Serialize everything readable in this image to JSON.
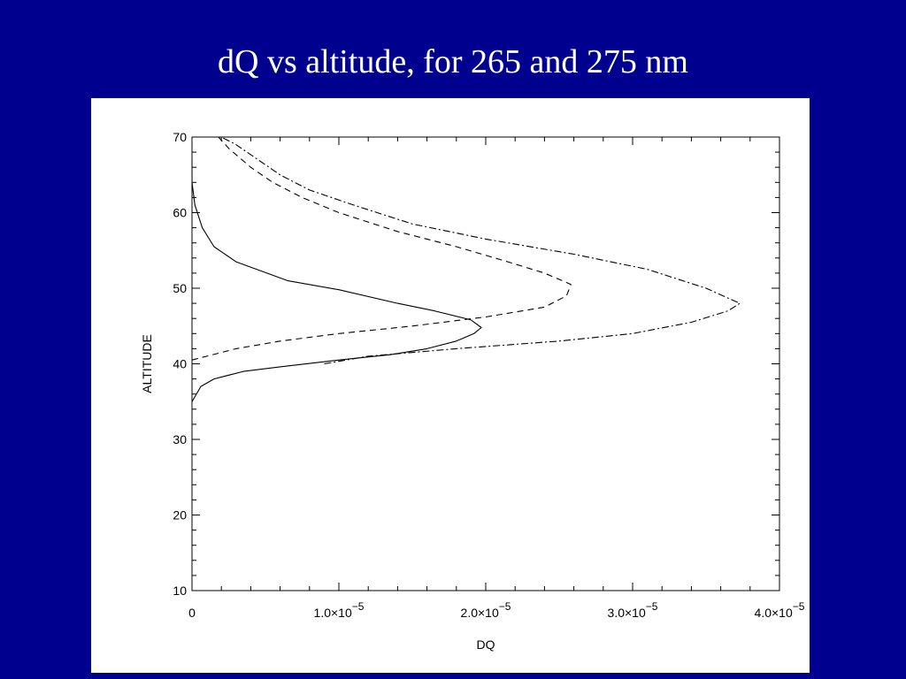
{
  "slide": {
    "title": "dQ vs altitude, for 265 and 275 nm"
  },
  "chart_data": {
    "type": "line",
    "title": "",
    "xlabel": "DQ",
    "ylabel": "ALTITUDE",
    "xlim": [
      0,
      4e-05
    ],
    "ylim": [
      10,
      70
    ],
    "grid": false,
    "x_tick_labels": [
      {
        "value": 0,
        "mantissa": "0",
        "exponent": ""
      },
      {
        "value": 1e-05,
        "mantissa": "1.0×10",
        "exponent": "−5"
      },
      {
        "value": 2e-05,
        "mantissa": "2.0×10",
        "exponent": "−5"
      },
      {
        "value": 3e-05,
        "mantissa": "3.0×10",
        "exponent": "−5"
      },
      {
        "value": 4e-05,
        "mantissa": "4.0×10",
        "exponent": "−5"
      }
    ],
    "y_ticks": [
      10,
      20,
      30,
      40,
      50,
      60,
      70
    ],
    "series": [
      {
        "line_style": "solid",
        "points": [
          [
            0.0,
            35.0
          ],
          [
            6e-07,
            37.0
          ],
          [
            1.5e-06,
            38.0
          ],
          [
            3.5e-06,
            39.0
          ],
          [
            6e-06,
            39.6
          ],
          [
            1e-05,
            40.5
          ],
          [
            1.35e-05,
            41.2
          ],
          [
            1.6e-05,
            42.0
          ],
          [
            1.8e-05,
            43.0
          ],
          [
            1.92e-05,
            44.0
          ],
          [
            1.97e-05,
            44.8
          ],
          [
            1.9e-05,
            45.8
          ],
          [
            1.65e-05,
            47.0
          ],
          [
            1.4e-05,
            48.0
          ],
          [
            1e-05,
            49.8
          ],
          [
            6.5e-06,
            51.0
          ],
          [
            3e-06,
            53.5
          ],
          [
            1.5e-06,
            55.5
          ],
          [
            7e-07,
            58.0
          ],
          [
            2e-07,
            61.0
          ],
          [
            0.0,
            64.0
          ],
          [
            0.0,
            67.0
          ]
        ]
      },
      {
        "line_style": "dashed",
        "points": [
          [
            0.0,
            40.5
          ],
          [
            3e-06,
            42.0
          ],
          [
            6e-06,
            43.0
          ],
          [
            1e-05,
            44.0
          ],
          [
            1.5e-05,
            45.0
          ],
          [
            2e-05,
            46.2
          ],
          [
            2.4e-05,
            47.5
          ],
          [
            2.55e-05,
            49.0
          ],
          [
            2.58e-05,
            50.5
          ],
          [
            2.4e-05,
            52.0
          ],
          [
            2.15e-05,
            53.5
          ],
          [
            1.8e-05,
            55.5
          ],
          [
            1.4e-05,
            57.5
          ],
          [
            1e-05,
            60.0
          ],
          [
            7.5e-06,
            62.0
          ],
          [
            5.5e-06,
            64.0
          ],
          [
            4e-06,
            66.0
          ],
          [
            2.5e-06,
            68.5
          ],
          [
            1.8e-06,
            70.0
          ]
        ]
      },
      {
        "line_style": "dash-dot",
        "points": [
          [
            9e-06,
            40.0
          ],
          [
            1.2e-05,
            41.0
          ],
          [
            1.8e-05,
            42.0
          ],
          [
            2.5e-05,
            43.0
          ],
          [
            3e-05,
            44.0
          ],
          [
            3.4e-05,
            45.5
          ],
          [
            3.65e-05,
            47.0
          ],
          [
            3.73e-05,
            48.0
          ],
          [
            3.5e-05,
            50.0
          ],
          [
            3.1e-05,
            52.5
          ],
          [
            2.6e-05,
            54.5
          ],
          [
            2e-05,
            56.5
          ],
          [
            1.5e-05,
            58.5
          ],
          [
            1.1e-05,
            61.0
          ],
          [
            8e-06,
            63.0
          ],
          [
            6e-06,
            65.0
          ],
          [
            4.5e-06,
            67.0
          ],
          [
            3e-06,
            69.0
          ],
          [
            2e-06,
            70.0
          ]
        ]
      }
    ]
  }
}
